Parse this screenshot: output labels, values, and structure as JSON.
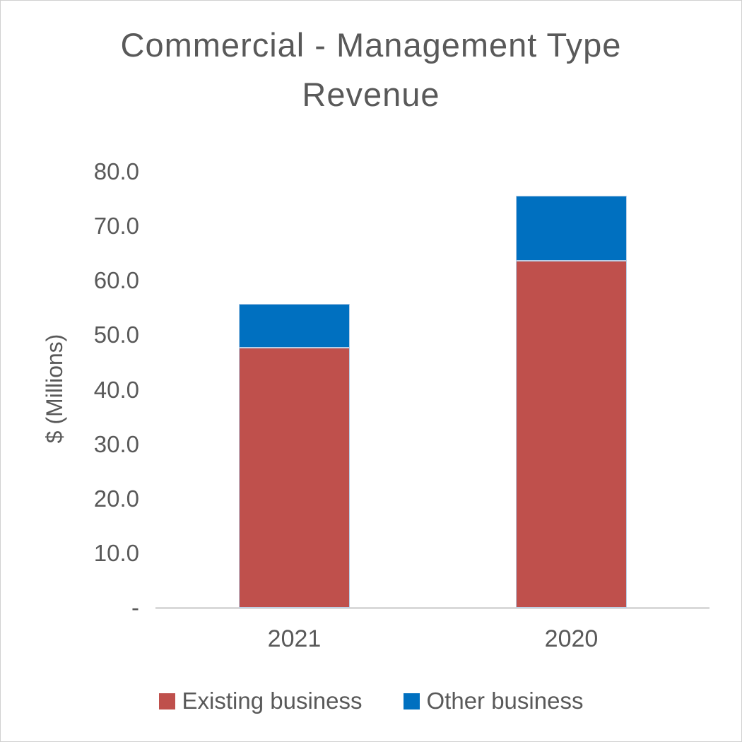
{
  "chart_data": {
    "type": "bar",
    "stacked": true,
    "title": "Commercial - Management Type Revenue",
    "title_lines": [
      "Commercial - Management Type",
      "Revenue"
    ],
    "categories": [
      "2021",
      "2020"
    ],
    "series": [
      {
        "name": "Existing business",
        "color": "#bf504c",
        "values": [
          47.7,
          63.7
        ]
      },
      {
        "name": "Other business",
        "color": "#0070c0",
        "values": [
          8.1,
          11.9
        ]
      }
    ],
    "totals": [
      55.8,
      75.6
    ],
    "xlabel": "",
    "ylabel": "$ (Millions)",
    "ylim": [
      0,
      80
    ],
    "ytick_interval": 10,
    "ytick_labels": [
      "-",
      "10.0",
      "20.0",
      "30.0",
      "40.0",
      "50.0",
      "60.0",
      "70.0",
      "80.0"
    ],
    "grid": false,
    "legend_position": "bottom"
  },
  "style": {
    "text_color": "#595959",
    "axis_line_color": "#d9d9d9",
    "segment_border_color": "#b9cfe7",
    "background": "#ffffff"
  }
}
